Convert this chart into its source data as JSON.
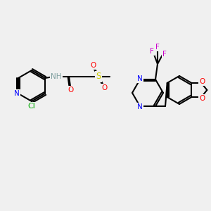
{
  "bg_color": "#f0f0f0",
  "bond_color": "#000000",
  "colors": {
    "N": "#0000ff",
    "O": "#ff0000",
    "F": "#cc00cc",
    "Cl": "#00aa00",
    "S": "#cccc00",
    "H": "#7f9f9f",
    "C": "#000000"
  },
  "font_size": 7.5,
  "bond_lw": 1.5
}
